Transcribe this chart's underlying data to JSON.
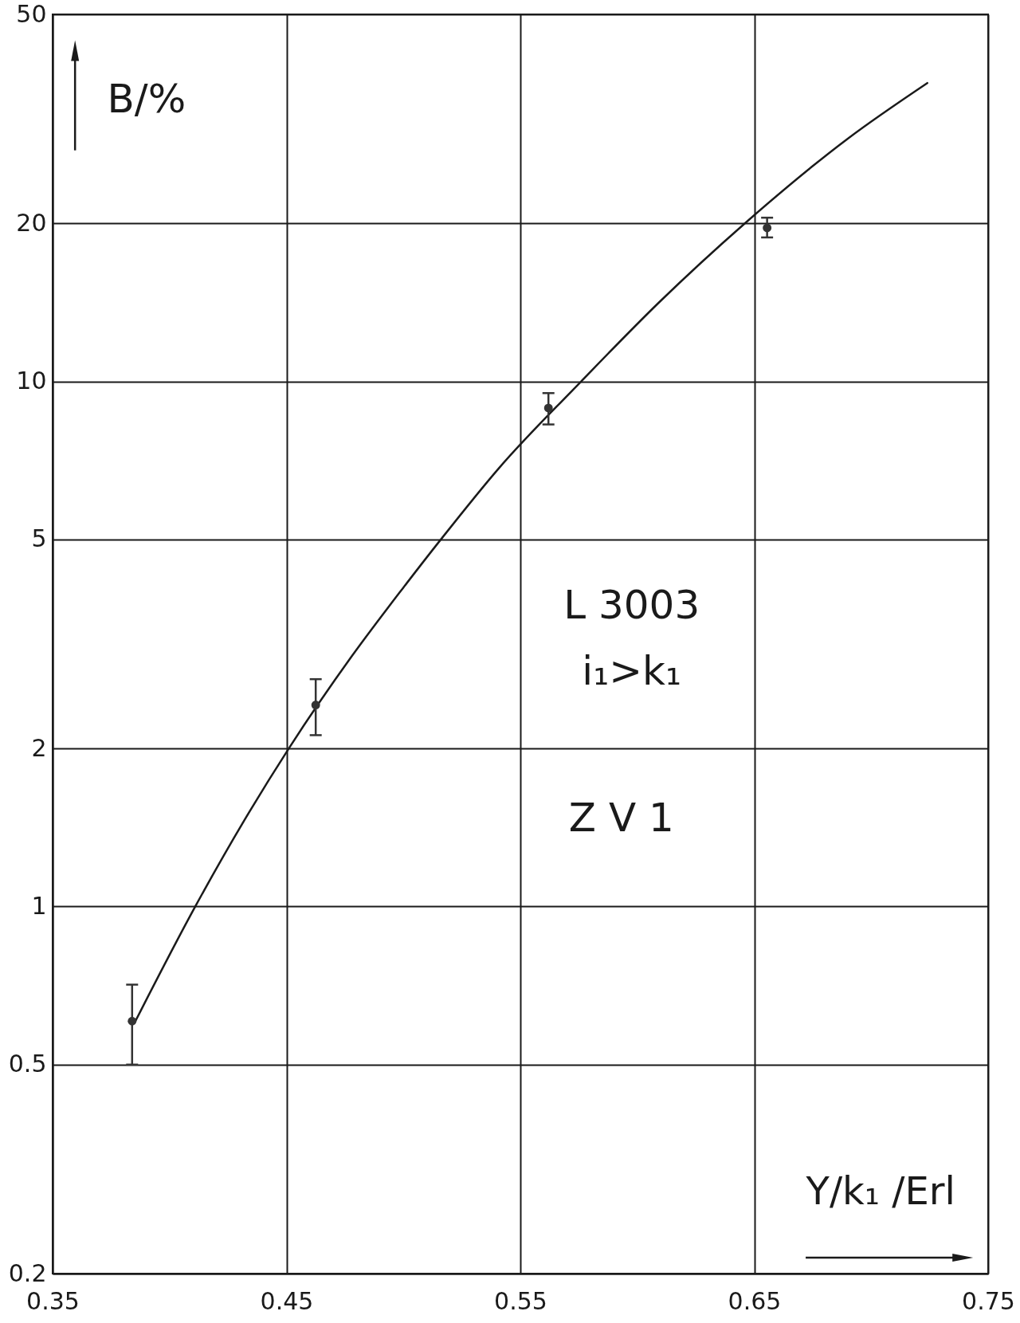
{
  "chart_data": {
    "type": "scatter",
    "xlabel": "Y/k₁ /Erl",
    "ylabel": "B/%",
    "annotations": [
      "L 3003",
      "i₁>k₁",
      "Z V 1"
    ],
    "xlim": [
      0.35,
      0.75
    ],
    "xticks": [
      0.35,
      0.45,
      0.55,
      0.65,
      0.75
    ],
    "ylim": [
      0.2,
      50
    ],
    "yticks": [
      0.2,
      0.5,
      1,
      2,
      5,
      10,
      20,
      50
    ],
    "log": "y",
    "grid": true,
    "series": [
      {
        "type": "line",
        "color": "#1a1a1a",
        "marker": "none",
        "x": [
          0.385,
          0.411,
          0.432,
          0.451,
          0.478,
          0.5,
          0.516,
          0.541,
          0.576,
          0.609,
          0.646,
          0.69,
          0.724
        ],
        "values": [
          0.6,
          1.0,
          1.46,
          2.0,
          3.0,
          4.05,
          5.0,
          6.85,
          10,
          14.1,
          20,
          29,
          37
        ]
      },
      {
        "color": "#333333",
        "marker": "circle",
        "x": [
          0.384,
          0.4625,
          0.562,
          0.6555
        ],
        "values": [
          0.605,
          2.42,
          8.9,
          19.6
        ],
        "errors": [
          [
            0.5,
            0.71
          ],
          [
            2.12,
            2.71
          ],
          [
            8.28,
            9.5
          ],
          [
            18.8,
            20.5
          ]
        ]
      }
    ]
  }
}
